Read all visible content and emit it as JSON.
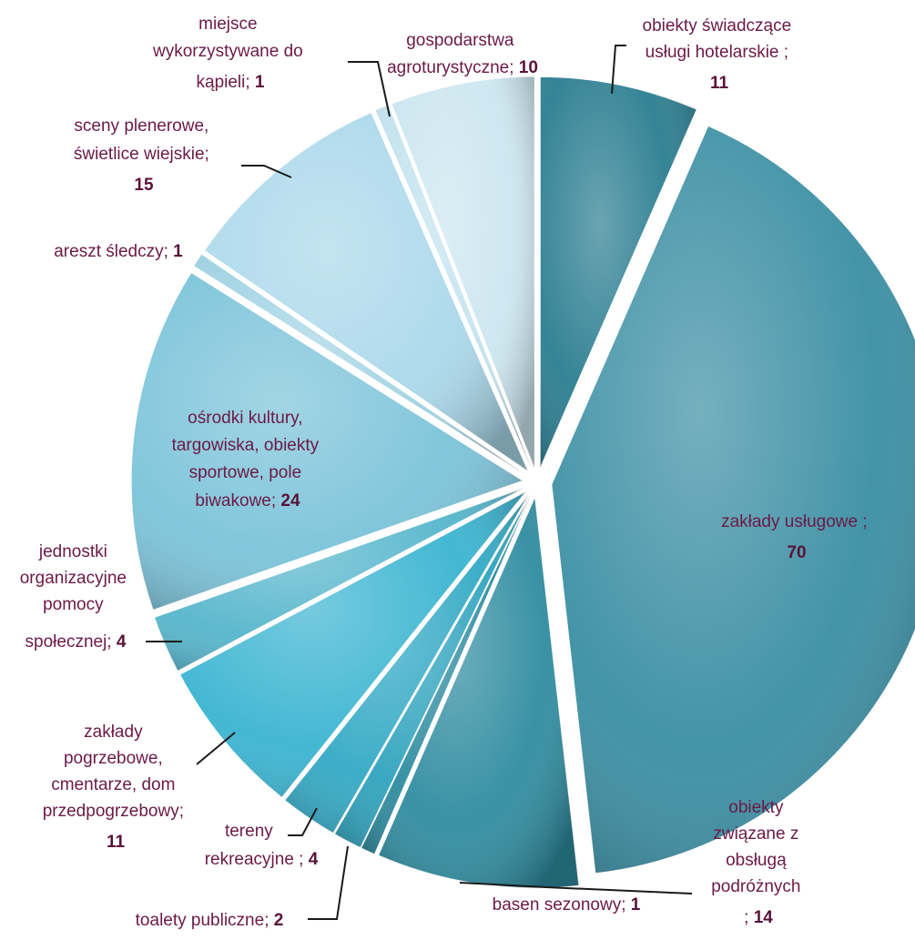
{
  "chart_data": {
    "type": "pie",
    "style": "exploded-3d",
    "slices": [
      {
        "label": "obiekty świadczące usługi hotelarskie ;",
        "value": 11,
        "color": "#2a7d90"
      },
      {
        "label": "zakłady usługowe ;",
        "value": 70,
        "color": "#3a8ea3"
      },
      {
        "label": "obiekty związane z obsługą podróżnych ;",
        "value": 14,
        "color": "#2f8ca0"
      },
      {
        "label": "basen sezonowy;",
        "value": 1,
        "color": "#2d8ba0"
      },
      {
        "label": "toalety publiczne;",
        "value": 2,
        "color": "#2fa3bd"
      },
      {
        "label": "tereny rekreacyjne ;",
        "value": 4,
        "color": "#33a9c5"
      },
      {
        "label": "zakłady pogrzebowe, cmentarze, dom przedpogrzebowy;",
        "value": 11,
        "color": "#3ab4d1"
      },
      {
        "label": "jednostki organizacyjne pomocy społecznej;",
        "value": 4,
        "color": "#55b5cc"
      },
      {
        "label": "ośrodki kultury, targowiska, obiekty sportowe, pole biwakowe;",
        "value": 24,
        "color": "#7bc3d9"
      },
      {
        "label": "areszt śledczy;",
        "value": 1,
        "color": "#9fd2e3"
      },
      {
        "label": "sceny plenerowe, świetlice wiejskie;",
        "value": 15,
        "color": "#aad8ea"
      },
      {
        "label": "miejsce wykorzystywane do kąpieli;",
        "value": 1,
        "color": "#c2e2ee"
      },
      {
        "label": "gospodarstwa agroturystyczne;",
        "value": 10,
        "color": "#cce6f0"
      }
    ],
    "label_color": "#6b1a47"
  }
}
